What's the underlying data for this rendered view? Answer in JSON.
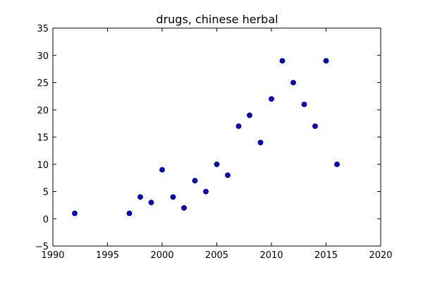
{
  "chart_data": {
    "type": "scatter",
    "title": "drugs, chinese herbal",
    "xlabel": "",
    "ylabel": "",
    "xlim": [
      1990,
      2020
    ],
    "ylim": [
      -5,
      35
    ],
    "xticks": [
      1990,
      1995,
      2000,
      2005,
      2010,
      2015,
      2020
    ],
    "yticks": [
      -5,
      0,
      5,
      10,
      15,
      20,
      25,
      30,
      35
    ],
    "grid": false,
    "marker_color": "#0000ff",
    "series": [
      {
        "points": [
          {
            "x": 1992,
            "y": 1
          },
          {
            "x": 1997,
            "y": 1
          },
          {
            "x": 1998,
            "y": 4
          },
          {
            "x": 1999,
            "y": 3
          },
          {
            "x": 2000,
            "y": 9
          },
          {
            "x": 2001,
            "y": 4
          },
          {
            "x": 2002,
            "y": 2
          },
          {
            "x": 2003,
            "y": 7
          },
          {
            "x": 2004,
            "y": 5
          },
          {
            "x": 2005,
            "y": 10
          },
          {
            "x": 2006,
            "y": 8
          },
          {
            "x": 2007,
            "y": 17
          },
          {
            "x": 2008,
            "y": 19
          },
          {
            "x": 2009,
            "y": 14
          },
          {
            "x": 2010,
            "y": 22
          },
          {
            "x": 2011,
            "y": 29
          },
          {
            "x": 2012,
            "y": 25
          },
          {
            "x": 2013,
            "y": 21
          },
          {
            "x": 2014,
            "y": 17
          },
          {
            "x": 2015,
            "y": 29
          },
          {
            "x": 2016,
            "y": 10
          }
        ]
      }
    ]
  }
}
